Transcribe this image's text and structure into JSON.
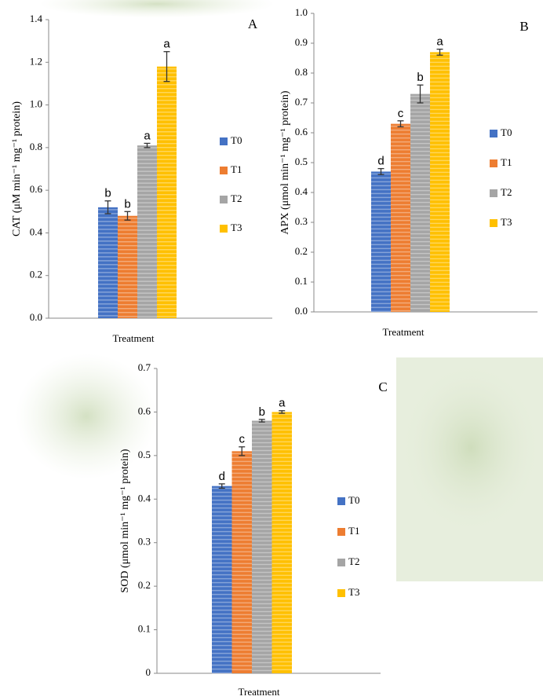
{
  "chart_data": [
    {
      "type": "bar",
      "panel": "A",
      "ylabel": "CAT (μM min⁻¹ mg⁻¹ protein)",
      "xlabel": "Treatment",
      "ylim": [
        0,
        1.4
      ],
      "yticks": [
        {
          "value": 0,
          "label": "0.0"
        },
        0.2,
        0.4,
        0.6,
        0.8,
        {
          "value": 1,
          "label": "1.0"
        },
        1.2,
        1.4
      ],
      "grid": false,
      "legend": "right",
      "series": [
        {
          "name": "T0",
          "color": "#4472c4",
          "values": [
            0.52
          ],
          "errors": [
            0.03
          ],
          "letters": [
            "b"
          ]
        },
        {
          "name": "T1",
          "color": "#ed7d31",
          "values": [
            0.48
          ],
          "errors": [
            0.02
          ],
          "letters": [
            "b"
          ]
        },
        {
          "name": "T2",
          "color": "#a5a5a5",
          "values": [
            0.81
          ],
          "errors": [
            0.01
          ],
          "letters": [
            "a"
          ]
        },
        {
          "name": "T3",
          "color": "#ffc000",
          "values": [
            1.18
          ],
          "errors": [
            0.07
          ],
          "letters": [
            "a"
          ]
        }
      ]
    },
    {
      "type": "bar",
      "panel": "B",
      "ylabel": "APX (μmol min⁻¹ mg⁻¹ protein)",
      "xlabel": "Treatment",
      "ylim": [
        0,
        1.0
      ],
      "yticks": [
        {
          "value": 0,
          "label": "0.0"
        },
        0.1,
        0.2,
        0.3,
        0.4,
        0.5,
        0.6,
        0.7,
        0.8,
        0.9,
        {
          "value": 1,
          "label": "1.0"
        }
      ],
      "grid": false,
      "legend": "right",
      "series": [
        {
          "name": "T0",
          "color": "#4472c4",
          "values": [
            0.47
          ],
          "errors": [
            0.01
          ],
          "letters": [
            "d"
          ]
        },
        {
          "name": "T1",
          "color": "#ed7d31",
          "values": [
            0.63
          ],
          "errors": [
            0.01
          ],
          "letters": [
            "c"
          ]
        },
        {
          "name": "T2",
          "color": "#a5a5a5",
          "values": [
            0.73
          ],
          "errors": [
            0.03
          ],
          "letters": [
            "b"
          ]
        },
        {
          "name": "T3",
          "color": "#ffc000",
          "values": [
            0.87
          ],
          "errors": [
            0.01
          ],
          "letters": [
            "a"
          ]
        }
      ]
    },
    {
      "type": "bar",
      "panel": "C",
      "ylabel": "SOD (μmol min⁻¹ mg⁻¹ protein)",
      "xlabel": "Treatment",
      "ylim": [
        0,
        0.7
      ],
      "yticks": [
        0,
        0.1,
        0.2,
        0.3,
        0.4,
        0.5,
        0.6,
        0.7
      ],
      "grid": false,
      "legend": "right",
      "series": [
        {
          "name": "T0",
          "color": "#4472c4",
          "values": [
            0.43
          ],
          "errors": [
            0.005
          ],
          "letters": [
            "d"
          ]
        },
        {
          "name": "T1",
          "color": "#ed7d31",
          "values": [
            0.51
          ],
          "errors": [
            0.01
          ],
          "letters": [
            "c"
          ]
        },
        {
          "name": "T2",
          "color": "#a5a5a5",
          "values": [
            0.58
          ],
          "errors": [
            0.003
          ],
          "letters": [
            "b"
          ]
        },
        {
          "name": "T3",
          "color": "#ffc000",
          "values": [
            0.6
          ],
          "errors": [
            0.003
          ],
          "letters": [
            "a"
          ]
        }
      ]
    }
  ]
}
